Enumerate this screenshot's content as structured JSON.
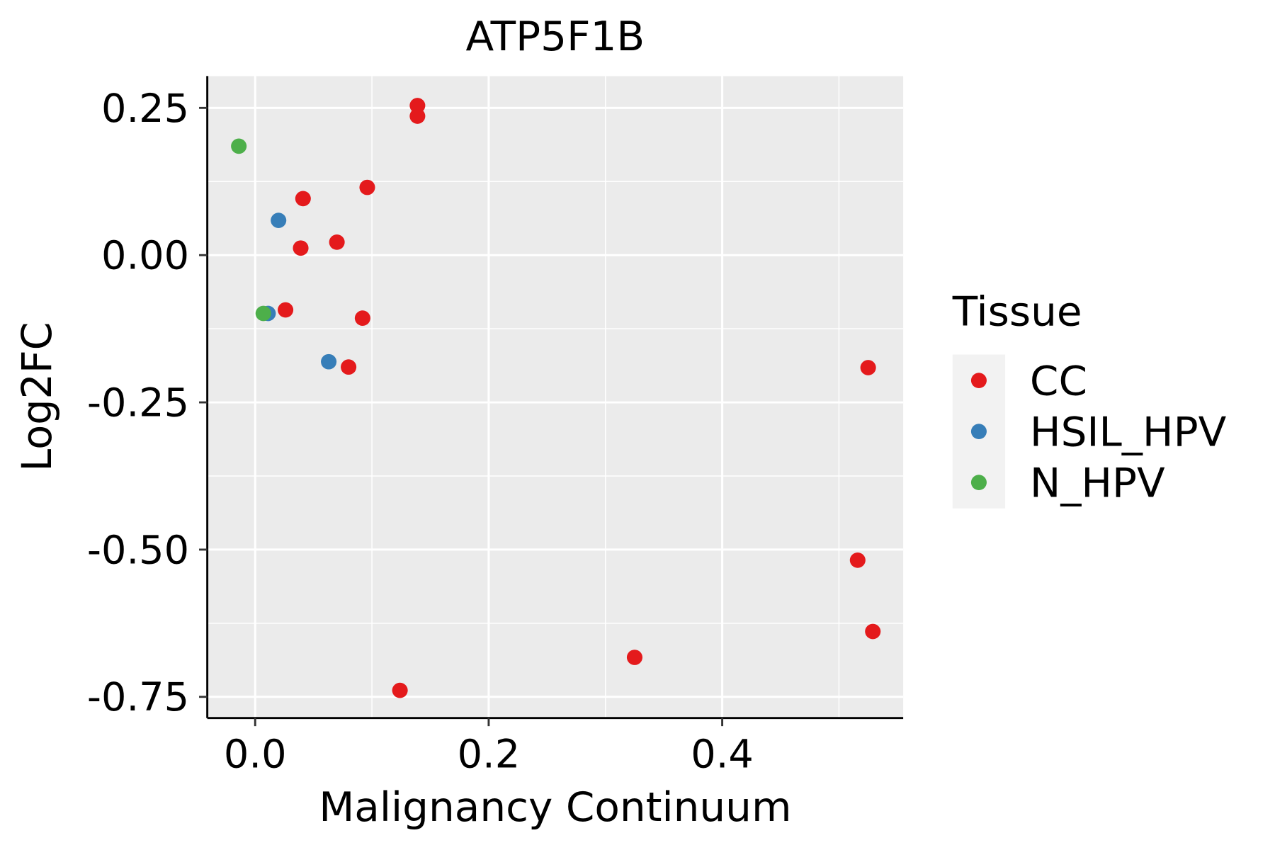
{
  "chart_data": {
    "type": "scatter",
    "title": "ATP5F1B",
    "xlabel": "Malignancy Continuum",
    "ylabel": "Log2FC",
    "xlim": [
      -0.041,
      0.555
    ],
    "ylim": [
      -0.786,
      0.304
    ],
    "xticks": [
      0.0,
      0.2,
      0.4
    ],
    "xtick_labels": [
      "0.0",
      "0.2",
      "0.4"
    ],
    "xminor": [
      0.1,
      0.3,
      0.5
    ],
    "yticks": [
      0.25,
      0.0,
      -0.25,
      -0.5,
      -0.75
    ],
    "ytick_labels": [
      "0.25",
      "0.00",
      "-0.25",
      "-0.50",
      "-0.75"
    ],
    "yminor": [
      0.125,
      -0.125,
      -0.375,
      -0.625
    ],
    "grid": true,
    "panel_background": "#EBEBEB",
    "legend": {
      "title": "Tissue",
      "placement": "right",
      "entries": [
        {
          "label": "CC",
          "color": "#E41A1C"
        },
        {
          "label": "HSIL_HPV",
          "color": "#377EB8"
        },
        {
          "label": "N_HPV",
          "color": "#4DAF4A"
        }
      ]
    },
    "series": [
      {
        "name": "CC",
        "color": "#E41A1C",
        "points": [
          [
            0.139,
            0.254
          ],
          [
            0.139,
            0.236
          ],
          [
            0.096,
            0.115
          ],
          [
            0.041,
            0.096
          ],
          [
            0.07,
            0.022
          ],
          [
            0.039,
            0.012
          ],
          [
            0.026,
            -0.093
          ],
          [
            0.092,
            -0.107
          ],
          [
            0.08,
            -0.19
          ],
          [
            0.525,
            -0.191
          ],
          [
            0.516,
            -0.518
          ],
          [
            0.529,
            -0.639
          ],
          [
            0.325,
            -0.683
          ],
          [
            0.124,
            -0.739
          ]
        ]
      },
      {
        "name": "HSIL_HPV",
        "color": "#377EB8",
        "points": [
          [
            0.02,
            0.059
          ],
          [
            0.011,
            -0.099
          ],
          [
            0.063,
            -0.181
          ]
        ]
      },
      {
        "name": "N_HPV",
        "color": "#4DAF4A",
        "points": [
          [
            -0.014,
            0.185
          ],
          [
            0.007,
            -0.099
          ]
        ]
      }
    ]
  }
}
